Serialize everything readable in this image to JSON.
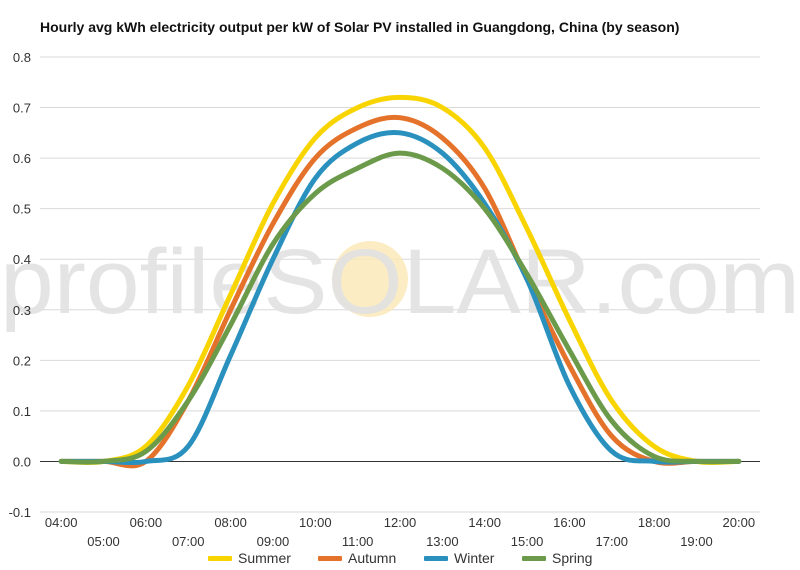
{
  "chart_data": {
    "type": "line",
    "title": "Hourly avg kWh electricity output per kW of Solar PV installed in Guangdong, China (by season)",
    "xlabel": "",
    "ylabel": "",
    "x_ticks_upper": [
      "04:00",
      "06:00",
      "08:00",
      "10:00",
      "12:00",
      "14:00",
      "16:00",
      "18:00",
      "20:00"
    ],
    "x_ticks_lower": [
      "05:00",
      "07:00",
      "09:00",
      "11:00",
      "13:00",
      "15:00",
      "17:00",
      "19:00"
    ],
    "y_ticks": [
      "-0.1",
      "0.0",
      "0.1",
      "0.2",
      "0.3",
      "0.4",
      "0.5",
      "0.6",
      "0.7",
      "0.8"
    ],
    "ylim": [
      -0.1,
      0.8
    ],
    "x_hours": [
      4,
      5,
      6,
      7,
      8,
      9,
      10,
      11,
      12,
      13,
      14,
      15,
      16,
      17,
      18,
      19,
      20
    ],
    "grid": true,
    "legend_position": "bottom",
    "watermark": "profileSOLAR.com",
    "series": [
      {
        "name": "Summer",
        "color": "#f8d400",
        "values": [
          0.0,
          0.0,
          0.03,
          0.15,
          0.33,
          0.51,
          0.64,
          0.7,
          0.72,
          0.7,
          0.62,
          0.46,
          0.28,
          0.12,
          0.03,
          0.0,
          0.0
        ]
      },
      {
        "name": "Autumn",
        "color": "#e5722a",
        "values": [
          0.0,
          0.0,
          0.0,
          0.12,
          0.3,
          0.47,
          0.6,
          0.66,
          0.68,
          0.64,
          0.54,
          0.36,
          0.19,
          0.05,
          0.0,
          0.0,
          0.0
        ]
      },
      {
        "name": "Winter",
        "color": "#2a91bf",
        "values": [
          0.0,
          0.0,
          0.0,
          0.03,
          0.21,
          0.4,
          0.56,
          0.63,
          0.65,
          0.61,
          0.51,
          0.36,
          0.15,
          0.02,
          0.0,
          0.0,
          0.0
        ]
      },
      {
        "name": "Spring",
        "color": "#6a9a4a",
        "values": [
          0.0,
          0.0,
          0.02,
          0.12,
          0.27,
          0.43,
          0.53,
          0.58,
          0.61,
          0.58,
          0.5,
          0.37,
          0.22,
          0.08,
          0.01,
          0.0,
          0.0
        ]
      }
    ]
  }
}
